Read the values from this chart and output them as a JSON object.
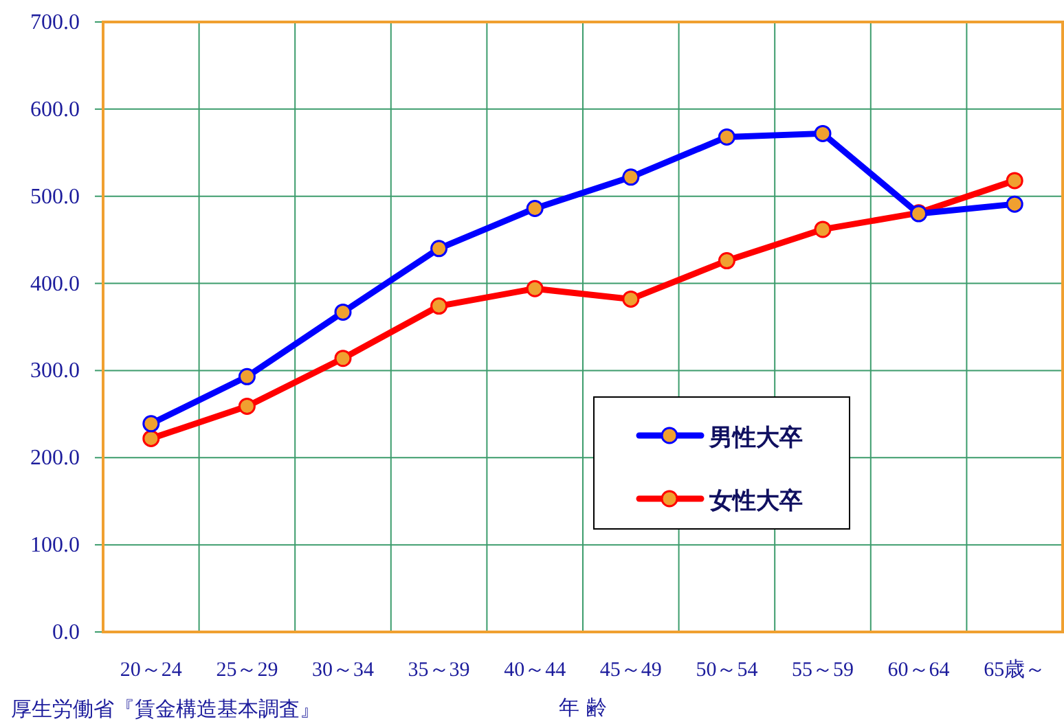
{
  "chart_data": {
    "type": "line",
    "xlabel": "年 齢",
    "categories": [
      "20～24",
      "25～29",
      "30～34",
      "35～39",
      "40～44",
      "45～49",
      "50～54",
      "55～59",
      "60～64",
      "65歳～"
    ],
    "series": [
      {
        "name": "男性大卒",
        "color": "#0000ff",
        "values": [
          239,
          293,
          367,
          440,
          486,
          522,
          568,
          572,
          480,
          491
        ]
      },
      {
        "name": "女性大卒",
        "color": "#ff0000",
        "values": [
          222,
          259,
          314,
          374,
          394,
          382,
          426,
          462,
          481,
          518
        ]
      }
    ],
    "ylim": [
      0,
      700
    ],
    "yticks": [
      {
        "value": 0,
        "label": "0.0"
      },
      {
        "value": 100,
        "label": "100.0"
      },
      {
        "value": 200,
        "label": "200.0"
      },
      {
        "value": 300,
        "label": "300.0"
      },
      {
        "value": 400,
        "label": "400.0"
      },
      {
        "value": 500,
        "label": "500.0"
      },
      {
        "value": 600,
        "label": "600.0"
      },
      {
        "value": 700,
        "label": "700.0"
      }
    ],
    "grid": true,
    "legend": "bottom right",
    "marker": "circle",
    "line_style": "solid",
    "annotations": [
      "厚生労働省『賃金構造基本調査』"
    ]
  }
}
